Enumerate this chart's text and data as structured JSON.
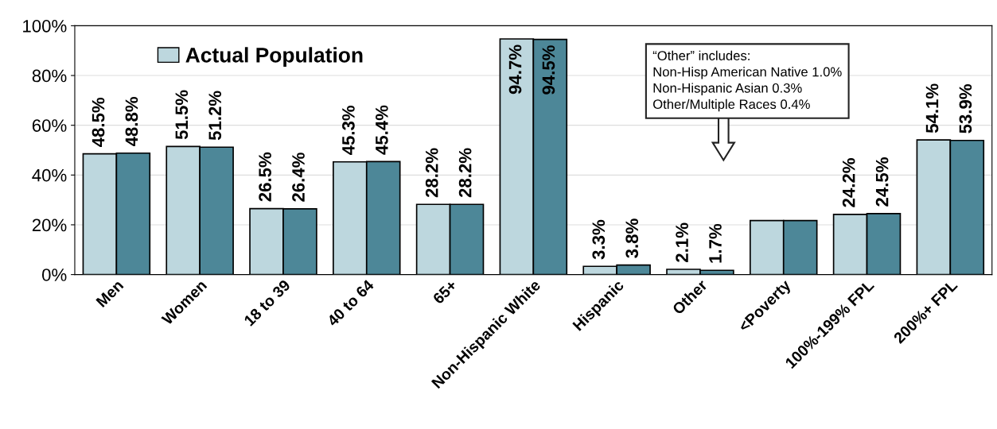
{
  "chart_data": {
    "type": "bar",
    "categories": [
      "Men",
      "Women",
      "18 to 39",
      "40 to 64",
      "65+",
      "Non-Hispanic White",
      "Hispanic",
      "Other",
      "<Poverty",
      "100%-199% FPL",
      "200%+ FPL"
    ],
    "series": [
      {
        "name": "Actual Population",
        "color": "#bdd7de",
        "values": [
          48.5,
          51.5,
          26.5,
          45.3,
          28.2,
          94.7,
          3.3,
          2.1,
          21.7,
          24.2,
          54.1
        ],
        "value_labels": [
          "48.5%",
          "51.5%",
          "26.5%",
          "45.3%",
          "28.2%",
          "94.7%",
          "3.3%",
          "2.1%",
          null,
          "24.2%",
          "54.1%"
        ]
      },
      {
        "color": "#4d8798",
        "values": [
          48.8,
          51.2,
          26.4,
          45.4,
          28.2,
          94.5,
          3.8,
          1.7,
          21.7,
          24.5,
          53.9
        ],
        "value_labels": [
          "48.8%",
          "51.2%",
          "26.4%",
          "45.4%",
          "28.2%",
          "94.5%",
          "3.8%",
          "1.7%",
          null,
          "24.5%",
          "53.9%"
        ]
      }
    ],
    "ylim": [
      0,
      100
    ],
    "yticks": [
      {
        "value": 0,
        "label": "0%"
      },
      {
        "value": 20,
        "label": "20%"
      },
      {
        "value": 40,
        "label": "40%"
      },
      {
        "value": 60,
        "label": "60%"
      },
      {
        "value": 80,
        "label": "80%"
      },
      {
        "value": 100,
        "label": "100%"
      }
    ],
    "grid": "y",
    "legend": "top left",
    "annotations": [
      "“Other” includes:",
      "Non-Hisp American Native 1.0%",
      "Non-Hispanic Asian 0.3%",
      "Other/Multiple Races 0.4%"
    ]
  }
}
